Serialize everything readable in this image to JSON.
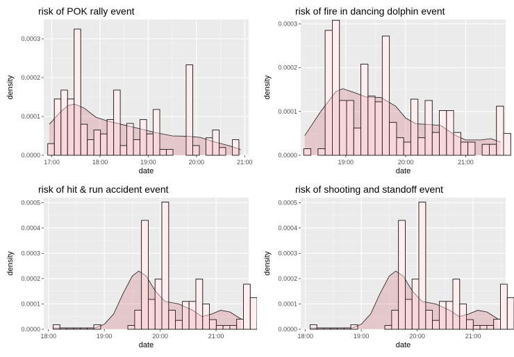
{
  "chart_data": [
    {
      "type": "bar",
      "title": "risk of POK rally event",
      "xlabel": "date",
      "ylabel": "density",
      "xlim": [
        "16:50",
        "21:05"
      ],
      "ylim": [
        0,
        0.00035
      ],
      "x_ticks": [
        "17:00",
        "18:00",
        "19:00",
        "20:00",
        "21:00"
      ],
      "y_ticks": [
        "0.0000",
        "0.0001",
        "0.0002",
        "0.0003"
      ],
      "grid": true,
      "bin_start": "16:55",
      "bin_width_minutes": 8.2,
      "histogram": [
        3e-05,
        0.000145,
        0.000168,
        0.000145,
        0.000325,
        8e-05,
        4e-05,
        6.5e-05,
        5.5e-05,
        9.2e-05,
        0.000168,
        2.5e-05,
        8.2e-05,
        4e-05,
        9.2e-05,
        5.5e-05,
        0.000118,
        1.5e-05,
        1.5e-05,
        0.0,
        0.0,
        0.000233,
        2.5e-05,
        0.0,
        4.5e-05,
        6.5e-05,
        2e-05,
        0.0,
        4e-05
      ],
      "density_curve": [
        {
          "x": "16:57",
          "y": 8e-05
        },
        {
          "x": "17:10",
          "y": 0.00011
        },
        {
          "x": "17:20",
          "y": 0.000128
        },
        {
          "x": "17:28",
          "y": 0.000132
        },
        {
          "x": "17:40",
          "y": 0.000122
        },
        {
          "x": "17:55",
          "y": 9.8e-05
        },
        {
          "x": "18:10",
          "y": 8.8e-05
        },
        {
          "x": "18:30",
          "y": 7.8e-05
        },
        {
          "x": "18:50",
          "y": 6.8e-05
        },
        {
          "x": "19:10",
          "y": 5.8e-05
        },
        {
          "x": "19:30",
          "y": 5e-05
        },
        {
          "x": "19:50",
          "y": 4.9e-05
        },
        {
          "x": "20:05",
          "y": 4.6e-05
        },
        {
          "x": "20:20",
          "y": 3.6e-05
        },
        {
          "x": "20:40",
          "y": 2.5e-05
        },
        {
          "x": "20:55",
          "y": 1.5e-05
        }
      ],
      "fill_color": "#ffd7db",
      "density_fill_color": "#cc5c66"
    },
    {
      "type": "bar",
      "title": "risk of fire in dancing dolphin event",
      "xlabel": "date",
      "ylabel": "density",
      "xlim": [
        "18:15",
        "21:40"
      ],
      "ylim": [
        0,
        0.00031
      ],
      "x_ticks": [
        "19:00",
        "20:00",
        "21:00"
      ],
      "y_ticks": [
        "0.0000",
        "0.0001",
        "0.0002",
        "0.0003"
      ],
      "grid": true,
      "bin_start": "18:18",
      "bin_width_minutes": 7.14,
      "histogram": [
        1.5e-05,
        0.0,
        1.5e-05,
        0.000285,
        0.000308,
        0.000125,
        0.000125,
        6.2e-05,
        0.000208,
        0.000135,
        0.000122,
        0.000272,
        7.5e-05,
        4e-05,
        3e-05,
        0.000128,
        4e-05,
        0.000125,
        5.2e-05,
        0.000102,
        0.000102,
        5.2e-05,
        3e-05,
        3e-05,
        0.0,
        2.5e-05,
        2.5e-05,
        0.000112,
        5e-05
      ],
      "density_curve": [
        {
          "x": "18:19",
          "y": 4.5e-05
        },
        {
          "x": "18:35",
          "y": 0.0001
        },
        {
          "x": "18:50",
          "y": 0.000145
        },
        {
          "x": "18:57",
          "y": 0.000152
        },
        {
          "x": "19:10",
          "y": 0.000142
        },
        {
          "x": "19:20",
          "y": 0.000133
        },
        {
          "x": "19:35",
          "y": 0.000132
        },
        {
          "x": "19:50",
          "y": 0.000112
        },
        {
          "x": "20:00",
          "y": 8.5e-05
        },
        {
          "x": "20:10",
          "y": 7.2e-05
        },
        {
          "x": "20:25",
          "y": 7e-05
        },
        {
          "x": "20:35",
          "y": 6.8e-05
        },
        {
          "x": "20:50",
          "y": 4.5e-05
        },
        {
          "x": "21:00",
          "y": 3.5e-05
        },
        {
          "x": "21:15",
          "y": 3.5e-05
        },
        {
          "x": "21:25",
          "y": 3.8e-05
        },
        {
          "x": "21:35",
          "y": 3e-05
        }
      ],
      "fill_color": "#ffd7db",
      "density_fill_color": "#cc5c66"
    },
    {
      "type": "bar",
      "title": "risk of hit & run accident event",
      "xlabel": "date",
      "ylabel": "density",
      "xlim": [
        "17:55",
        "21:35"
      ],
      "ylim": [
        0,
        0.00052
      ],
      "x_ticks": [
        "18:00",
        "19:00",
        "20:00",
        "21:00"
      ],
      "y_ticks": [
        "0.0000",
        "0.0001",
        "0.0002",
        "0.0003",
        "0.0004",
        "0.0005"
      ],
      "grid": true,
      "bin_start": "18:05",
      "bin_width_minutes": 7.3,
      "histogram": [
        1.8e-05,
        5e-06,
        5e-06,
        5e-06,
        5e-06,
        5e-06,
        1.8e-05,
        0.0,
        0.0,
        0.0,
        0.0,
        1.5e-05,
        7.5e-05,
        0.00043,
        0.000118,
        0.000198,
        0.000502,
        7.5e-05,
        3.5e-05,
        0.00011,
        0.00011,
        0.000198,
        0.0001,
        3.8e-05,
        1.5e-05,
        1.5e-05,
        1.5e-05,
        4e-05,
        0.000178,
        0.000125,
        3.5e-05
      ],
      "density_curve": [
        {
          "x": "18:05",
          "y": 5e-06
        },
        {
          "x": "18:30",
          "y": 4e-06
        },
        {
          "x": "18:50",
          "y": 5e-06
        },
        {
          "x": "19:00",
          "y": 2e-05
        },
        {
          "x": "19:10",
          "y": 6e-05
        },
        {
          "x": "19:20",
          "y": 0.00014
        },
        {
          "x": "19:30",
          "y": 0.00021
        },
        {
          "x": "19:37",
          "y": 0.00023
        },
        {
          "x": "19:45",
          "y": 0.00021
        },
        {
          "x": "19:55",
          "y": 0.00015
        },
        {
          "x": "20:05",
          "y": 0.00011
        },
        {
          "x": "20:20",
          "y": 0.0001
        },
        {
          "x": "20:35",
          "y": 7.5e-05
        },
        {
          "x": "20:45",
          "y": 5e-05
        },
        {
          "x": "20:55",
          "y": 6e-05
        },
        {
          "x": "21:05",
          "y": 7.5e-05
        },
        {
          "x": "21:15",
          "y": 6.8e-05
        },
        {
          "x": "21:27",
          "y": 4e-05
        }
      ],
      "fill_color": "#ffd7db",
      "density_fill_color": "#cc5c66"
    },
    {
      "type": "bar",
      "title": "risk of shooting and standoff event",
      "xlabel": "date",
      "ylabel": "density",
      "xlim": [
        "17:55",
        "21:35"
      ],
      "ylim": [
        0,
        0.00052
      ],
      "x_ticks": [
        "18:00",
        "19:00",
        "20:00",
        "21:00"
      ],
      "y_ticks": [
        "0.0000",
        "0.0001",
        "0.0002",
        "0.0003",
        "0.0004",
        "0.0005"
      ],
      "grid": true,
      "bin_start": "18:05",
      "bin_width_minutes": 7.3,
      "histogram": [
        1.8e-05,
        5e-06,
        5e-06,
        5e-06,
        5e-06,
        5e-06,
        1.8e-05,
        0.0,
        0.0,
        0.0,
        0.0,
        1.5e-05,
        7.5e-05,
        0.00043,
        0.000118,
        0.000198,
        0.000502,
        7.5e-05,
        3.5e-05,
        0.00011,
        0.00011,
        0.000198,
        0.0001,
        3.8e-05,
        1.5e-05,
        1.5e-05,
        1.5e-05,
        4e-05,
        0.000178,
        0.000125,
        3.5e-05
      ],
      "density_curve": [
        {
          "x": "18:05",
          "y": 5e-06
        },
        {
          "x": "18:30",
          "y": 4e-06
        },
        {
          "x": "18:50",
          "y": 5e-06
        },
        {
          "x": "19:00",
          "y": 2e-05
        },
        {
          "x": "19:10",
          "y": 6e-05
        },
        {
          "x": "19:20",
          "y": 0.00014
        },
        {
          "x": "19:30",
          "y": 0.00021
        },
        {
          "x": "19:37",
          "y": 0.00023
        },
        {
          "x": "19:45",
          "y": 0.00021
        },
        {
          "x": "19:55",
          "y": 0.00015
        },
        {
          "x": "20:05",
          "y": 0.00011
        },
        {
          "x": "20:20",
          "y": 0.0001
        },
        {
          "x": "20:35",
          "y": 7.5e-05
        },
        {
          "x": "20:45",
          "y": 5e-05
        },
        {
          "x": "20:55",
          "y": 6e-05
        },
        {
          "x": "21:05",
          "y": 7.5e-05
        },
        {
          "x": "21:15",
          "y": 6.8e-05
        },
        {
          "x": "21:27",
          "y": 4e-05
        }
      ],
      "fill_color": "#ffd7db",
      "density_fill_color": "#cc5c66"
    }
  ]
}
